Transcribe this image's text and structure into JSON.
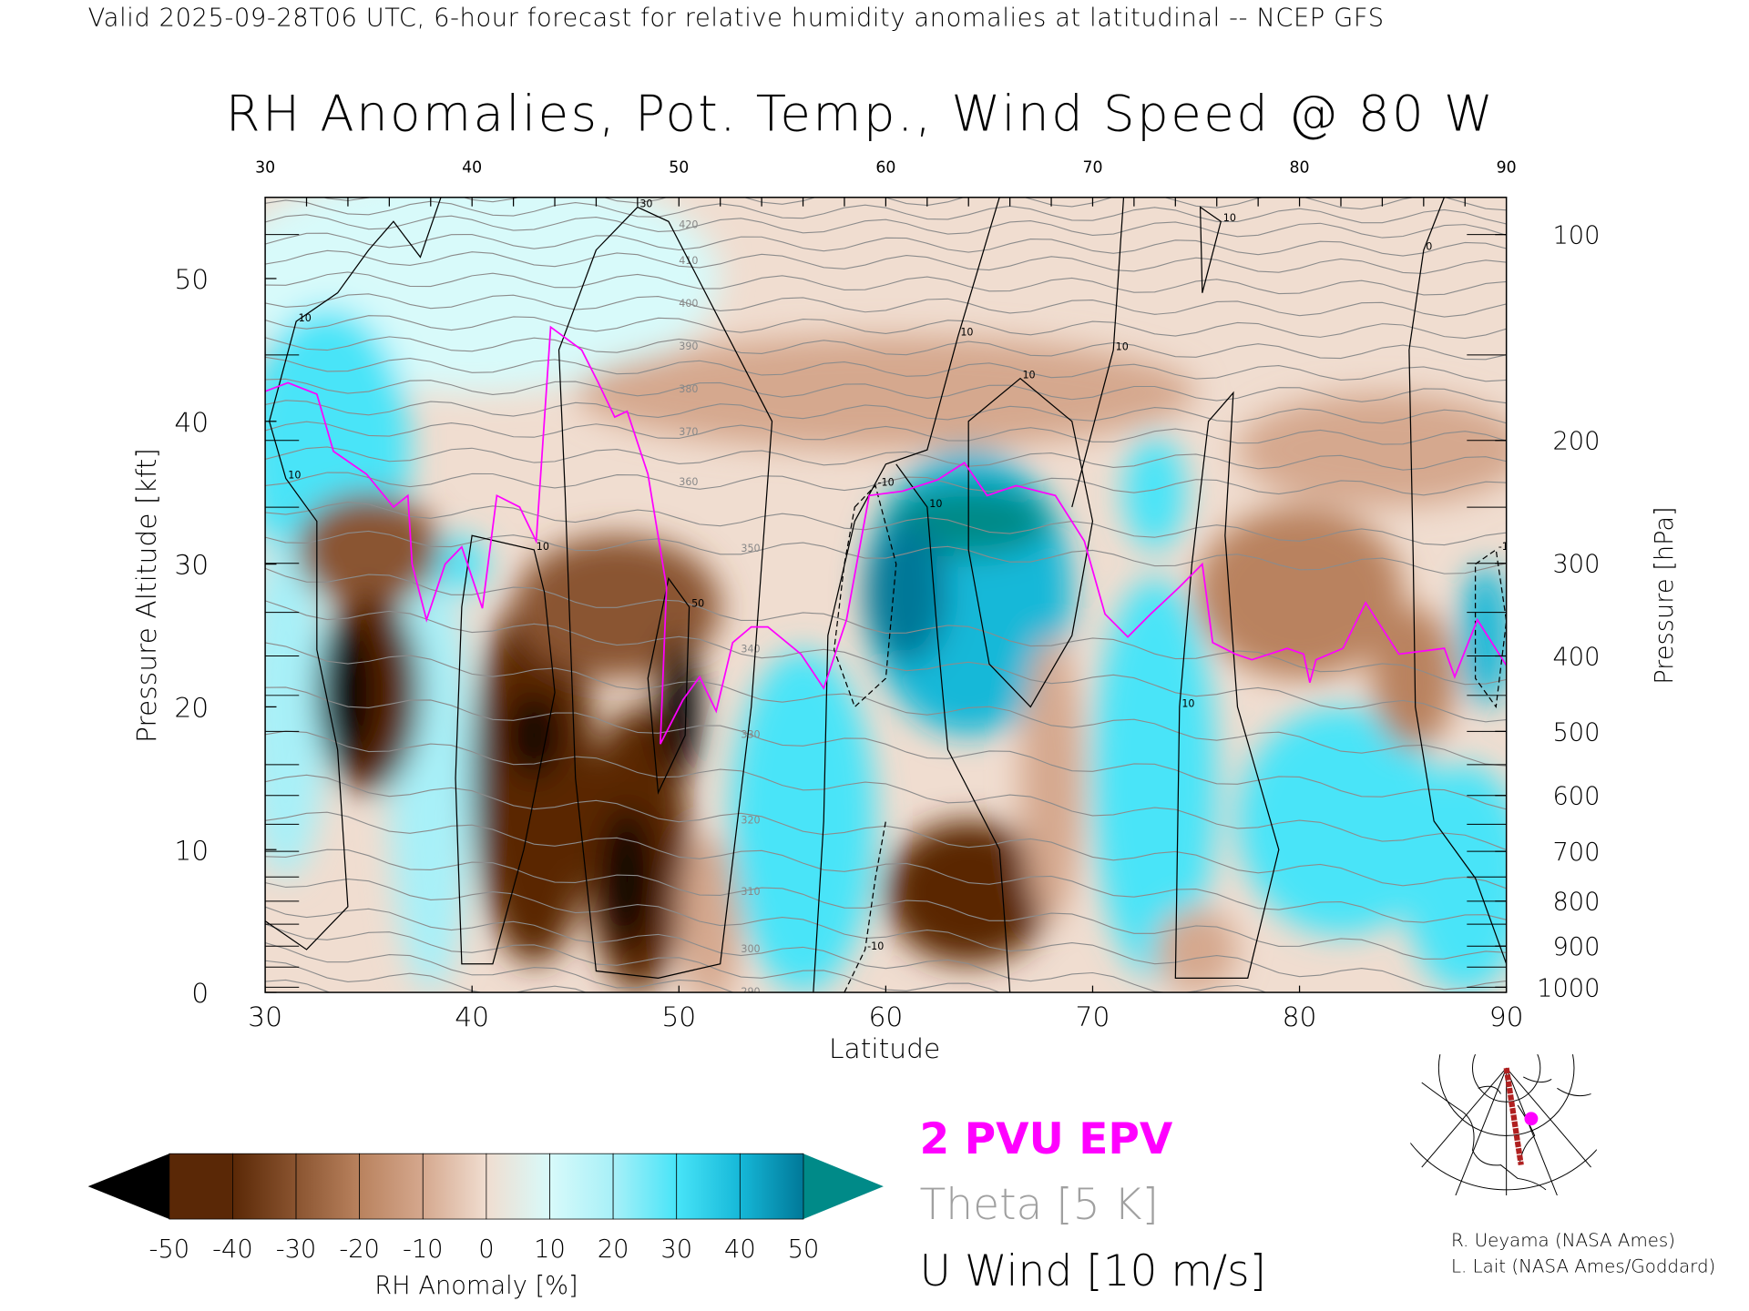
{
  "header": {
    "valid_line": "Valid 2025-09-28T06 UTC, 6-hour forecast for relative humidity anomalies at latitudinal -- NCEP GFS",
    "title": "RH Anomalies, Pot. Temp., Wind Speed @ 80 W"
  },
  "legend": {
    "pv": "2 PVU EPV",
    "theta": "Theta [5 K]",
    "wind": "U Wind [10 m/s]",
    "colors": {
      "pv": "#ff00ff",
      "theta": "#a0a0a0",
      "wind": "#000000"
    }
  },
  "credits": [
    "R. Ueyama (NASA Ames)",
    "L. Lait (NASA Ames/Goddard)"
  ],
  "colorbar": {
    "title": "RH Anomaly [%]",
    "ticks": [
      "-50",
      "-40",
      "-30",
      "-20",
      "-10",
      "0",
      "10",
      "20",
      "30",
      "40",
      "50"
    ],
    "colors": [
      "#000000",
      "#5a2806",
      "#8a5430",
      "#b9825e",
      "#d5a88e",
      "#f0ddd0",
      "#d8fafa",
      "#a8f0f8",
      "#48e4f8",
      "#16b8d8",
      "#007898",
      "#008a88"
    ]
  },
  "chart_data": {
    "type": "heatmap",
    "title": "RH Anomalies, Pot. Temp., Wind Speed @ 80 W",
    "xlabel": "Latitude",
    "ylabel": "Pressure Altitude [kft]",
    "y2label": "Pressure [hPa]",
    "xlim": [
      30,
      90
    ],
    "ylim": [
      0,
      55.7
    ],
    "x_ticks": [
      "30",
      "40",
      "50",
      "60",
      "70",
      "80",
      "90"
    ],
    "x_ticks_top": [
      "30",
      "40",
      "50",
      "60",
      "70",
      "80",
      "90"
    ],
    "y_ticks": [
      "0",
      "10",
      "20",
      "30",
      "40",
      "50"
    ],
    "pressure_ticks": [
      "100",
      "200",
      "300",
      "400",
      "500",
      "600",
      "700",
      "800",
      "900",
      "1000"
    ],
    "rh_anomaly_background": -8,
    "rh_anomaly_regions": [
      {
        "lat": 40,
        "kft": 50,
        "dlat": 12,
        "dkft": 8,
        "value": 10
      },
      {
        "lat": 33,
        "kft": 38,
        "dlat": 4,
        "dkft": 10,
        "value": 25
      },
      {
        "lat": 31,
        "kft": 20,
        "dlat": 2,
        "dkft": 12,
        "value": 20
      },
      {
        "lat": 38,
        "kft": 15,
        "dlat": 2,
        "dkft": 15,
        "value": 20
      },
      {
        "lat": 60,
        "kft": 42,
        "dlat": 15,
        "dkft": 4,
        "value": -12
      },
      {
        "lat": 84,
        "kft": 38,
        "dlat": 7,
        "dkft": 4,
        "value": -15
      },
      {
        "lat": 35,
        "kft": 31,
        "dlat": 3.5,
        "dkft": 4,
        "value": -35
      },
      {
        "lat": 35,
        "kft": 21,
        "dlat": 2.5,
        "dkft": 7,
        "value": -45
      },
      {
        "lat": 34,
        "kft": 21,
        "dlat": 1.3,
        "dkft": 5,
        "value": -50
      },
      {
        "lat": 39.5,
        "kft": 30,
        "dlat": 1.2,
        "dkft": 2,
        "value": 30
      },
      {
        "lat": 43,
        "kft": 15,
        "dlat": 3,
        "dkft": 13,
        "value": -40
      },
      {
        "lat": 43,
        "kft": 18,
        "dlat": 1.2,
        "dkft": 3,
        "value": -50
      },
      {
        "lat": 47,
        "kft": 27,
        "dlat": 5,
        "dkft": 5,
        "value": -30
      },
      {
        "lat": 48,
        "kft": 10,
        "dlat": 2.5,
        "dkft": 10,
        "value": -40
      },
      {
        "lat": 47.5,
        "kft": 8,
        "dlat": 1.2,
        "dkft": 5,
        "value": -50
      },
      {
        "lat": 50,
        "kft": 20,
        "dlat": 1,
        "dkft": 5,
        "value": -50
      },
      {
        "lat": 51.5,
        "kft": 5,
        "dlat": 1.5,
        "dkft": 6,
        "value": -15
      },
      {
        "lat": 56,
        "kft": 12,
        "dlat": 3.5,
        "dkft": 12,
        "value": 30
      },
      {
        "lat": 64,
        "kft": 28,
        "dlat": 5,
        "dkft": 10,
        "value": 35
      },
      {
        "lat": 64,
        "kft": 33,
        "dlat": 4,
        "dkft": 2.5,
        "value": 55
      },
      {
        "lat": 61,
        "kft": 28,
        "dlat": 2,
        "dkft": 5,
        "value": 45
      },
      {
        "lat": 64,
        "kft": 7,
        "dlat": 4,
        "dkft": 5,
        "value": -40
      },
      {
        "lat": 68,
        "kft": 15,
        "dlat": 1.5,
        "dkft": 10,
        "value": -10
      },
      {
        "lat": 73,
        "kft": 15,
        "dlat": 3,
        "dkft": 14,
        "value": 30
      },
      {
        "lat": 73,
        "kft": 35,
        "dlat": 1.5,
        "dkft": 4,
        "value": 30
      },
      {
        "lat": 75,
        "kft": 3,
        "dlat": 2,
        "dkft": 3,
        "value": -10
      },
      {
        "lat": 80,
        "kft": 28,
        "dlat": 5,
        "dkft": 6,
        "value": -20
      },
      {
        "lat": 82,
        "kft": 12,
        "dlat": 5,
        "dkft": 8,
        "value": 25
      },
      {
        "lat": 88,
        "kft": 8,
        "dlat": 3,
        "dkft": 8,
        "value": 25
      },
      {
        "lat": 85.5,
        "kft": 22,
        "dlat": 2,
        "dkft": 5,
        "value": -20
      },
      {
        "lat": 89,
        "kft": 25,
        "dlat": 1.2,
        "dkft": 5,
        "value": 40
      }
    ],
    "theta_levels": [
      270,
      275,
      280,
      285,
      290,
      295,
      300,
      305,
      310,
      315,
      320,
      325,
      330,
      335,
      340,
      345,
      350,
      355,
      360,
      365,
      370,
      375,
      380,
      385,
      390,
      395,
      400,
      405,
      410,
      415,
      420,
      425,
      430,
      435,
      440
    ],
    "theta_labels": [
      "290",
      "300",
      "310",
      "320",
      "330",
      "340",
      "350",
      "360",
      "370",
      "380",
      "390",
      "400",
      "410",
      "420"
    ],
    "pv_2pvu": [
      [
        30,
        42.1
      ],
      [
        31.1,
        42.7
      ],
      [
        32.5,
        41.9
      ],
      [
        33.3,
        37.9
      ],
      [
        34.9,
        36.3
      ],
      [
        36.2,
        34
      ],
      [
        36.9,
        34.8
      ],
      [
        37.1,
        30
      ],
      [
        37.8,
        26.1
      ],
      [
        38.7,
        30
      ],
      [
        39.5,
        31.2
      ],
      [
        40.5,
        26.9
      ],
      [
        41.2,
        34.8
      ],
      [
        42.3,
        34
      ],
      [
        43.1,
        31.6
      ],
      [
        43.8,
        46.6
      ],
      [
        45.3,
        45
      ],
      [
        46.1,
        42.7
      ],
      [
        46.9,
        40.3
      ],
      [
        47.5,
        40.7
      ],
      [
        48.5,
        36.3
      ],
      [
        49.4,
        28.4
      ],
      [
        49.1,
        17.4
      ],
      [
        50.2,
        20.5
      ],
      [
        51,
        22.1
      ],
      [
        51.8,
        19.7
      ],
      [
        52.6,
        24.5
      ],
      [
        53.5,
        25.6
      ],
      [
        54.3,
        25.6
      ],
      [
        55.9,
        23.7
      ],
      [
        57,
        21.3
      ],
      [
        58.1,
        26.1
      ],
      [
        59.2,
        34.8
      ],
      [
        60.8,
        35.1
      ],
      [
        62.5,
        35.9
      ],
      [
        63.8,
        37.1
      ],
      [
        64.9,
        34.8
      ],
      [
        66.3,
        35.5
      ],
      [
        68.2,
        34.8
      ],
      [
        69.6,
        31.6
      ],
      [
        70.6,
        26.5
      ],
      [
        71.7,
        24.9
      ],
      [
        72.8,
        26.5
      ],
      [
        74.2,
        28.4
      ],
      [
        75.3,
        30
      ],
      [
        75.8,
        24.5
      ],
      [
        76.9,
        23.7
      ],
      [
        77.7,
        23.3
      ],
      [
        79.4,
        24.1
      ],
      [
        80.2,
        23.7
      ],
      [
        80.5,
        21.7
      ],
      [
        80.8,
        23.3
      ],
      [
        82.1,
        24.1
      ],
      [
        83.2,
        27.3
      ],
      [
        84.8,
        23.7
      ],
      [
        87,
        24.1
      ],
      [
        87.5,
        22.1
      ],
      [
        88.6,
        26.1
      ],
      [
        90,
        22.9
      ]
    ],
    "u_wind_contours": [
      {
        "value": "10",
        "dashed": false,
        "closed": false,
        "points": [
          [
            30.2,
            40
          ],
          [
            31.5,
            47
          ],
          [
            33.5,
            49
          ],
          [
            35,
            52
          ],
          [
            36.2,
            54
          ],
          [
            37.5,
            51.5
          ],
          [
            38.5,
            55.7
          ]
        ]
      },
      {
        "value": "10",
        "dashed": false,
        "closed": false,
        "points": [
          [
            30.2,
            40
          ],
          [
            31,
            36
          ],
          [
            32.5,
            33
          ],
          [
            32.5,
            24
          ],
          [
            33.5,
            17
          ],
          [
            34,
            6
          ],
          [
            32,
            3
          ],
          [
            30,
            5
          ]
        ]
      },
      {
        "value": "10",
        "dashed": false,
        "closed": true,
        "points": [
          [
            40,
            32
          ],
          [
            43,
            31
          ],
          [
            43.5,
            28
          ],
          [
            44,
            21
          ],
          [
            42.5,
            10
          ],
          [
            41,
            2
          ],
          [
            39.5,
            2
          ],
          [
            39.2,
            15
          ],
          [
            39.5,
            27
          ]
        ]
      },
      {
        "value": "30",
        "dashed": false,
        "closed": true,
        "points": [
          [
            46,
            52
          ],
          [
            48,
            55
          ],
          [
            49.5,
            54
          ],
          [
            52,
            47
          ],
          [
            54.5,
            40
          ],
          [
            53.5,
            20
          ],
          [
            52,
            2
          ],
          [
            49,
            1
          ],
          [
            46,
            1.5
          ],
          [
            45,
            15
          ],
          [
            44.5,
            35
          ],
          [
            44.2,
            45
          ]
        ]
      },
      {
        "value": "50",
        "dashed": false,
        "closed": true,
        "points": [
          [
            49.5,
            29
          ],
          [
            50.5,
            27
          ],
          [
            50.3,
            18
          ],
          [
            49,
            14
          ],
          [
            48.5,
            22
          ]
        ]
      },
      {
        "value": "10",
        "dashed": false,
        "closed": false,
        "points": [
          [
            65.5,
            55.7
          ],
          [
            63.5,
            46
          ],
          [
            62,
            38
          ],
          [
            60,
            37
          ],
          [
            58.5,
            33
          ],
          [
            57.2,
            25
          ],
          [
            57,
            12
          ],
          [
            56.5,
            0
          ]
        ]
      },
      {
        "value": "10",
        "dashed": false,
        "closed": false,
        "points": [
          [
            60.5,
            37
          ],
          [
            62,
            34
          ],
          [
            62.5,
            25
          ],
          [
            63,
            17
          ],
          [
            65.5,
            10
          ],
          [
            66,
            0
          ]
        ]
      },
      {
        "value": "-10",
        "dashed": true,
        "closed": true,
        "points": [
          [
            58.5,
            34
          ],
          [
            59.5,
            35.5
          ],
          [
            60.5,
            30
          ],
          [
            60,
            22
          ],
          [
            58.5,
            20
          ],
          [
            57.5,
            24
          ],
          [
            58,
            30
          ]
        ]
      },
      {
        "value": "-10",
        "dashed": true,
        "closed": false,
        "points": [
          [
            58,
            0
          ],
          [
            59,
            3
          ],
          [
            59.5,
            8
          ],
          [
            60,
            12
          ]
        ]
      },
      {
        "value": "10",
        "dashed": false,
        "closed": true,
        "points": [
          [
            64,
            40
          ],
          [
            66.5,
            43
          ],
          [
            69,
            40
          ],
          [
            70,
            33
          ],
          [
            69,
            25
          ],
          [
            67,
            20
          ],
          [
            65,
            23
          ],
          [
            64,
            31
          ]
        ]
      },
      {
        "value": "10",
        "dashed": false,
        "closed": false,
        "points": [
          [
            71.5,
            55.7
          ],
          [
            71,
            45
          ],
          [
            69,
            34
          ]
        ]
      },
      {
        "value": "10",
        "dashed": false,
        "closed": true,
        "points": [
          [
            74,
            1
          ],
          [
            74.2,
            20
          ],
          [
            74.8,
            30
          ],
          [
            75.6,
            40
          ],
          [
            76.8,
            42
          ],
          [
            76.4,
            32
          ],
          [
            77,
            20
          ],
          [
            79,
            10
          ],
          [
            77.5,
            1
          ]
        ]
      },
      {
        "value": "10",
        "dashed": false,
        "closed": true,
        "points": [
          [
            75.2,
            55
          ],
          [
            76.2,
            54
          ],
          [
            75.3,
            49
          ]
        ]
      },
      {
        "value": "0",
        "dashed": false,
        "closed": false,
        "points": [
          [
            87,
            55.7
          ],
          [
            86,
            52
          ],
          [
            85.3,
            45
          ],
          [
            85.5,
            30
          ],
          [
            85.6,
            20
          ],
          [
            86.5,
            12
          ],
          [
            88.5,
            8
          ],
          [
            90,
            2
          ]
        ]
      },
      {
        "value": "-10",
        "dashed": true,
        "closed": true,
        "points": [
          [
            88.5,
            30
          ],
          [
            89.5,
            31
          ],
          [
            90,
            26
          ],
          [
            89.5,
            20
          ],
          [
            88.5,
            22
          ]
        ]
      }
    ]
  }
}
